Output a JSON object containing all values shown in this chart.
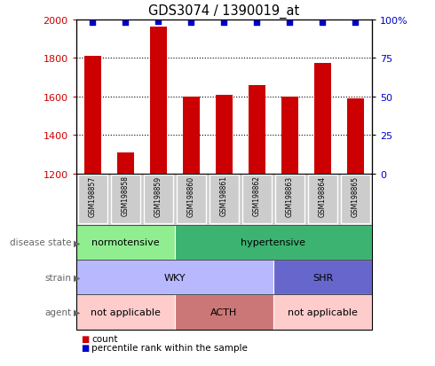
{
  "title": "GDS3074 / 1390019_at",
  "samples": [
    "GSM198857",
    "GSM198858",
    "GSM198859",
    "GSM198860",
    "GSM198861",
    "GSM198862",
    "GSM198863",
    "GSM198864",
    "GSM198865"
  ],
  "counts": [
    1810,
    1310,
    1960,
    1600,
    1610,
    1660,
    1600,
    1775,
    1590
  ],
  "percentile_ranks": [
    98,
    98,
    99,
    98,
    98,
    98,
    98,
    98,
    98
  ],
  "ylim_left": [
    1200,
    2000
  ],
  "ylim_right": [
    0,
    100
  ],
  "yticks_left": [
    1200,
    1400,
    1600,
    1800,
    2000
  ],
  "yticks_right": [
    0,
    25,
    50,
    75,
    100
  ],
  "ytick_right_labels": [
    "0",
    "25",
    "50",
    "75",
    "100%"
  ],
  "bar_color": "#cc0000",
  "dot_color": "#0000cc",
  "disease_state": [
    {
      "start": 0,
      "end": 3,
      "color": "#90ee90",
      "label": "normotensive"
    },
    {
      "start": 3,
      "end": 9,
      "color": "#3cb371",
      "label": "hypertensive"
    }
  ],
  "strain": [
    {
      "start": 0,
      "end": 6,
      "color": "#b8b8ff",
      "label": "WKY"
    },
    {
      "start": 6,
      "end": 9,
      "color": "#6666cc",
      "label": "SHR"
    }
  ],
  "agent": [
    {
      "start": 0,
      "end": 3,
      "color": "#ffcccc",
      "label": "not applicable"
    },
    {
      "start": 3,
      "end": 6,
      "color": "#cc7777",
      "label": "ACTH"
    },
    {
      "start": 6,
      "end": 9,
      "color": "#ffcccc",
      "label": "not applicable"
    }
  ],
  "left_label_color": "#cc0000",
  "right_label_color": "#0000cc",
  "row_label_color": "#666666",
  "sample_box_color": "#cccccc",
  "bg_color": "#ffffff"
}
